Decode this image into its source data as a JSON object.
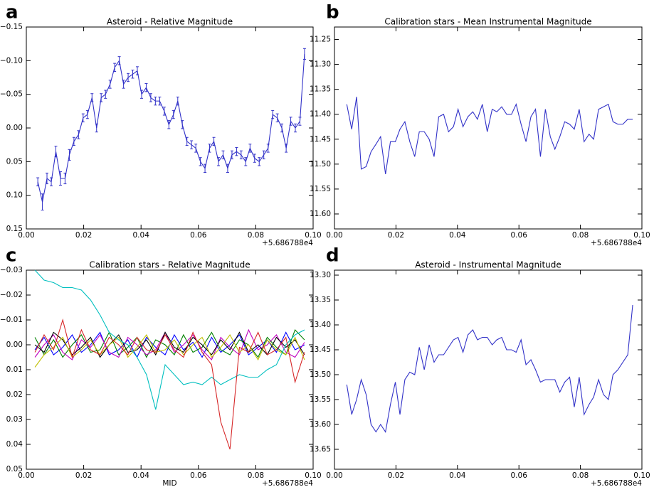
{
  "chart_data": [
    {
      "panel": "a",
      "type": "errorbar",
      "title": "Asteroid - Relative Magnitude",
      "x_offset_label": "+5.686788e4",
      "x": [
        0.004,
        0.0056,
        0.0072,
        0.0087,
        0.0103,
        0.0119,
        0.0135,
        0.015,
        0.0166,
        0.0182,
        0.0198,
        0.0213,
        0.0229,
        0.0245,
        0.0261,
        0.0276,
        0.0292,
        0.0308,
        0.0324,
        0.0339,
        0.0355,
        0.0371,
        0.0387,
        0.0402,
        0.0418,
        0.0434,
        0.045,
        0.0465,
        0.0481,
        0.0497,
        0.0513,
        0.0528,
        0.0544,
        0.056,
        0.0576,
        0.0591,
        0.0607,
        0.0623,
        0.0639,
        0.0654,
        0.067,
        0.0686,
        0.0702,
        0.0717,
        0.0733,
        0.0749,
        0.0765,
        0.078,
        0.0796,
        0.0812,
        0.0828,
        0.0843,
        0.0859,
        0.0875,
        0.0891,
        0.0906,
        0.0922,
        0.0938,
        0.0954,
        0.097
      ],
      "xlim": [
        0,
        0.1
      ],
      "xticks": [
        {
          "value": 0,
          "label": "0.00"
        },
        0.02,
        0.04,
        0.06,
        0.08,
        {
          "value": 0.1,
          "label": "0.10"
        }
      ],
      "ylim": [
        -0.15,
        0.15
      ],
      "y_inverted": true,
      "yticks": [
        {
          "value": -0.15,
          "label": "−0.15"
        },
        {
          "value": -0.1,
          "label": "−0.10"
        },
        {
          "value": -0.05,
          "label": "−0.05"
        },
        {
          "value": 0,
          "label": "0.00"
        },
        0.05,
        {
          "value": 0.1,
          "label": "0.10"
        },
        0.15
      ],
      "series": [
        {
          "color": "#3232c8",
          "values": [
            0.08,
            0.11,
            0.075,
            0.08,
            0.035,
            0.075,
            0.075,
            0.04,
            0.02,
            0.01,
            -0.015,
            -0.02,
            -0.045,
            0.0,
            -0.045,
            -0.05,
            -0.065,
            -0.09,
            -0.1,
            -0.065,
            -0.075,
            -0.08,
            -0.085,
            -0.05,
            -0.06,
            -0.045,
            -0.04,
            -0.04,
            -0.025,
            -0.005,
            -0.02,
            -0.04,
            -0.005,
            0.02,
            0.025,
            0.03,
            0.05,
            0.06,
            0.03,
            0.02,
            0.05,
            0.04,
            0.06,
            0.04,
            0.035,
            0.04,
            0.05,
            0.03,
            0.045,
            0.05,
            0.04,
            0.03,
            -0.02,
            -0.015,
            0.0,
            0.03,
            -0.01,
            0.0,
            -0.01,
            -0.11
          ],
          "errors": [
            0.006,
            0.012,
            0.008,
            0.006,
            0.008,
            0.01,
            0.008,
            0.008,
            0.006,
            0.006,
            0.006,
            0.006,
            0.006,
            0.006,
            0.006,
            0.006,
            0.006,
            0.006,
            0.006,
            0.006,
            0.006,
            0.006,
            0.006,
            0.006,
            0.006,
            0.006,
            0.006,
            0.006,
            0.006,
            0.006,
            0.006,
            0.006,
            0.006,
            0.006,
            0.006,
            0.006,
            0.006,
            0.006,
            0.006,
            0.006,
            0.006,
            0.006,
            0.006,
            0.006,
            0.006,
            0.006,
            0.006,
            0.006,
            0.006,
            0.006,
            0.006,
            0.006,
            0.006,
            0.006,
            0.006,
            0.006,
            0.006,
            0.006,
            0.006,
            0.008
          ]
        }
      ]
    },
    {
      "panel": "b",
      "type": "line",
      "title": "Calibration stars - Mean Instrumental Magnitude",
      "x_offset_label": "+5.686788e4",
      "x": [
        0.004,
        0.0056,
        0.0072,
        0.0087,
        0.0103,
        0.0119,
        0.0135,
        0.015,
        0.0166,
        0.0182,
        0.0198,
        0.0213,
        0.0229,
        0.0245,
        0.0261,
        0.0276,
        0.0292,
        0.0308,
        0.0324,
        0.0339,
        0.0355,
        0.0371,
        0.0387,
        0.0402,
        0.0418,
        0.0434,
        0.045,
        0.0465,
        0.0481,
        0.0497,
        0.0513,
        0.0528,
        0.0544,
        0.056,
        0.0576,
        0.0591,
        0.0607,
        0.0623,
        0.0639,
        0.0654,
        0.067,
        0.0686,
        0.0702,
        0.0717,
        0.0733,
        0.0749,
        0.0765,
        0.078,
        0.0796,
        0.0812,
        0.0828,
        0.0843,
        0.0859,
        0.0875,
        0.0891,
        0.0906,
        0.0922,
        0.0938,
        0.0954,
        0.097
      ],
      "xlim": [
        0,
        0.1
      ],
      "xticks": [
        {
          "value": 0,
          "label": "0.00"
        },
        0.02,
        0.04,
        0.06,
        0.08,
        {
          "value": 0.1,
          "label": "0.10"
        }
      ],
      "ylim": [
        11.225,
        11.63
      ],
      "y_inverted": true,
      "yticks": [
        11.25,
        {
          "value": 11.3,
          "label": "11.30"
        },
        11.35,
        {
          "value": 11.4,
          "label": "11.40"
        },
        11.45,
        {
          "value": 11.5,
          "label": "11.50"
        },
        11.55,
        {
          "value": 11.6,
          "label": "11.60"
        }
      ],
      "series": [
        {
          "color": "#3232c8",
          "values": [
            11.38,
            11.43,
            11.365,
            11.51,
            11.505,
            11.475,
            11.46,
            11.445,
            11.52,
            11.455,
            11.455,
            11.43,
            11.415,
            11.455,
            11.485,
            11.435,
            11.435,
            11.45,
            11.485,
            11.405,
            11.4,
            11.435,
            11.425,
            11.39,
            11.425,
            11.405,
            11.395,
            11.41,
            11.38,
            11.435,
            11.39,
            11.395,
            11.385,
            11.4,
            11.4,
            11.38,
            11.42,
            11.455,
            11.405,
            11.39,
            11.485,
            11.39,
            11.445,
            11.47,
            11.445,
            11.415,
            11.42,
            11.43,
            11.39,
            11.455,
            11.44,
            11.45,
            11.39,
            11.385,
            11.38,
            11.415,
            11.42,
            11.42,
            11.41,
            11.41
          ]
        }
      ]
    },
    {
      "panel": "c",
      "type": "line",
      "title": "Calibration stars - Relative Magnitude",
      "xlabel": "MID",
      "x_offset_label": "+5.686788e4",
      "x": [
        0.003,
        0.0062,
        0.0095,
        0.0127,
        0.016,
        0.0192,
        0.0224,
        0.0257,
        0.0289,
        0.0322,
        0.0354,
        0.0386,
        0.0419,
        0.0451,
        0.0484,
        0.0516,
        0.0548,
        0.0581,
        0.0613,
        0.0646,
        0.0678,
        0.071,
        0.0743,
        0.0775,
        0.0808,
        0.084,
        0.0872,
        0.0905,
        0.0937,
        0.097
      ],
      "xlim": [
        0,
        0.1
      ],
      "xticks": [
        {
          "value": 0,
          "label": "0.00"
        },
        0.02,
        0.04,
        0.06,
        0.08,
        {
          "value": 0.1,
          "label": "0.10"
        }
      ],
      "ylim": [
        -0.03,
        0.05
      ],
      "y_inverted": true,
      "yticks": [
        {
          "value": -0.03,
          "label": "−0.03"
        },
        {
          "value": -0.02,
          "label": "−0.02"
        },
        {
          "value": -0.01,
          "label": "−0.01"
        },
        {
          "value": 0,
          "label": "0.00"
        },
        0.01,
        0.02,
        0.03,
        0.04,
        0.05
      ],
      "series": [
        {
          "color": "#0000ff",
          "values": [
            0.002,
            -0.003,
            0.004,
            0.001,
            -0.004,
            0.003,
            0.0,
            -0.005,
            0.004,
            0.002,
            -0.002,
            0.005,
            -0.003,
            0.001,
            0.004,
            -0.004,
            0.002,
            -0.001,
            0.005,
            -0.003,
            0.003,
            0.0,
            -0.004,
            0.004,
            0.001,
            -0.002,
            0.003,
            -0.005,
            0.002,
            0.0
          ]
        },
        {
          "color": "#008000",
          "values": [
            -0.003,
            0.004,
            -0.002,
            0.005,
            0.0,
            -0.004,
            0.003,
            0.002,
            -0.005,
            0.004,
            0.001,
            -0.003,
            0.005,
            -0.002,
            0.0,
            0.004,
            -0.004,
            0.003,
            0.001,
            -0.005,
            0.002,
            0.004,
            -0.002,
            0.0,
            0.005,
            -0.003,
            0.001,
            0.004,
            -0.006,
            -0.002
          ]
        },
        {
          "color": "#bf00bf",
          "values": [
            0.005,
            0.0,
            -0.004,
            0.003,
            0.006,
            -0.002,
            0.001,
            -0.004,
            0.003,
            0.005,
            -0.003,
            0.0,
            0.004,
            0.002,
            -0.005,
            0.003,
            0.0,
            -0.004,
            0.002,
            0.006,
            -0.003,
            0.001,
            0.004,
            -0.006,
            0.002,
            0.0,
            -0.004,
            0.003,
            0.005,
            -0.001
          ]
        },
        {
          "color": "#000000",
          "values": [
            0.0,
            0.003,
            -0.005,
            -0.002,
            0.004,
            0.001,
            -0.003,
            0.005,
            0.0,
            -0.004,
            0.003,
            0.002,
            -0.002,
            0.004,
            -0.005,
            0.001,
            0.003,
            -0.003,
            0.0,
            0.004,
            -0.002,
            0.002,
            -0.005,
            0.003,
            0.0,
            0.004,
            -0.003,
            0.001,
            -0.002,
            0.004
          ]
        },
        {
          "color": "#bfbf00",
          "values": [
            0.009,
            0.004,
            0.001,
            -0.003,
            0.005,
            0.002,
            -0.002,
            0.004,
            0.0,
            -0.003,
            0.005,
            0.001,
            -0.004,
            0.003,
            0.002,
            -0.002,
            0.004,
            0.0,
            -0.003,
            0.005,
            0.001,
            -0.004,
            0.003,
            0.0,
            0.006,
            -0.002,
            0.002,
            0.004,
            -0.003,
            0.006
          ]
        },
        {
          "color": "#00bfbf",
          "values": [
            -0.03,
            -0.026,
            -0.025,
            -0.023,
            -0.023,
            -0.022,
            -0.018,
            -0.012,
            -0.005,
            -0.002,
            0.0,
            0.005,
            0.012,
            0.026,
            0.008,
            0.012,
            0.016,
            0.015,
            0.016,
            0.013,
            0.016,
            0.014,
            0.012,
            0.013,
            0.013,
            0.01,
            0.008,
            0.0,
            -0.004,
            -0.006
          ]
        },
        {
          "color": "#d62728",
          "values": [
            0.003,
            -0.004,
            0.002,
            -0.01,
            0.005,
            -0.006,
            0.002,
            0.004,
            -0.003,
            0.0,
            0.004,
            -0.003,
            0.002,
            0.003,
            -0.004,
            0.002,
            0.005,
            -0.005,
            0.003,
            0.008,
            0.031,
            0.042,
            0.001,
            0.003,
            -0.005,
            0.004,
            0.002,
            -0.003,
            0.015,
            0.003
          ]
        }
      ]
    },
    {
      "panel": "d",
      "type": "line",
      "title": "Asteroid - Instrumental Magnitude",
      "x_offset_label": "+5.686788e4",
      "x": [
        0.004,
        0.0056,
        0.0072,
        0.0087,
        0.0103,
        0.0119,
        0.0135,
        0.015,
        0.0166,
        0.0182,
        0.0198,
        0.0213,
        0.0229,
        0.0245,
        0.0261,
        0.0276,
        0.0292,
        0.0308,
        0.0324,
        0.0339,
        0.0355,
        0.0371,
        0.0387,
        0.0402,
        0.0418,
        0.0434,
        0.045,
        0.0465,
        0.0481,
        0.0497,
        0.0513,
        0.0528,
        0.0544,
        0.056,
        0.0576,
        0.0591,
        0.0607,
        0.0623,
        0.0639,
        0.0654,
        0.067,
        0.0686,
        0.0702,
        0.0717,
        0.0733,
        0.0749,
        0.0765,
        0.078,
        0.0796,
        0.0812,
        0.0828,
        0.0843,
        0.0859,
        0.0875,
        0.0891,
        0.0906,
        0.0922,
        0.0938,
        0.0954,
        0.097
      ],
      "xlim": [
        0,
        0.1
      ],
      "xticks": [
        {
          "value": 0,
          "label": "0.00"
        },
        0.02,
        0.04,
        0.06,
        0.08,
        {
          "value": 0.1,
          "label": "0.10"
        }
      ],
      "ylim": [
        13.29,
        13.69
      ],
      "y_inverted": true,
      "yticks": [
        {
          "value": 13.3,
          "label": "13.30"
        },
        13.35,
        {
          "value": 13.4,
          "label": "13.40"
        },
        13.45,
        {
          "value": 13.5,
          "label": "13.50"
        },
        13.55,
        {
          "value": 13.6,
          "label": "13.60"
        },
        13.65
      ],
      "series": [
        {
          "color": "#3232c8",
          "values": [
            13.52,
            13.58,
            13.55,
            13.51,
            13.54,
            13.6,
            13.615,
            13.6,
            13.615,
            13.56,
            13.515,
            13.58,
            13.51,
            13.495,
            13.5,
            13.445,
            13.49,
            13.44,
            13.475,
            13.46,
            13.46,
            13.445,
            13.43,
            13.425,
            13.455,
            13.42,
            13.41,
            13.43,
            13.425,
            13.425,
            13.44,
            13.43,
            13.425,
            13.45,
            13.45,
            13.455,
            13.43,
            13.48,
            13.47,
            13.49,
            13.515,
            13.51,
            13.51,
            13.51,
            13.535,
            13.515,
            13.505,
            13.565,
            13.505,
            13.58,
            13.56,
            13.545,
            13.51,
            13.54,
            13.55,
            13.5,
            13.49,
            13.475,
            13.46,
            13.36
          ]
        }
      ]
    }
  ]
}
